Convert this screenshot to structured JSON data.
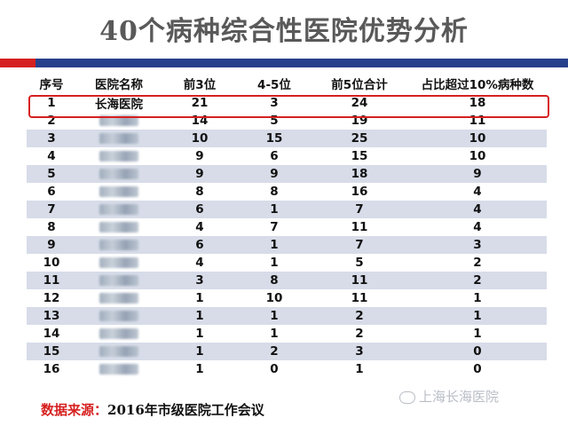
{
  "title": "40个病种综合性医院优势分析",
  "table": {
    "headers": [
      "序号",
      "医院名称",
      "前3位",
      "4-5位",
      "前5位合计",
      "占比超过10%病种数"
    ],
    "rows": [
      {
        "seq": "1",
        "name": "长海医院",
        "top3": "21",
        "pos45": "3",
        "top5": "24",
        "over10": "18"
      },
      {
        "seq": "2",
        "name": "",
        "top3": "14",
        "pos45": "5",
        "top5": "19",
        "over10": "11"
      },
      {
        "seq": "3",
        "name": "",
        "top3": "10",
        "pos45": "15",
        "top5": "25",
        "over10": "10"
      },
      {
        "seq": "4",
        "name": "",
        "top3": "9",
        "pos45": "6",
        "top5": "15",
        "over10": "10"
      },
      {
        "seq": "5",
        "name": "",
        "top3": "9",
        "pos45": "9",
        "top5": "18",
        "over10": "9"
      },
      {
        "seq": "6",
        "name": "",
        "top3": "8",
        "pos45": "8",
        "top5": "16",
        "over10": "4"
      },
      {
        "seq": "7",
        "name": "",
        "top3": "6",
        "pos45": "1",
        "top5": "7",
        "over10": "4"
      },
      {
        "seq": "8",
        "name": "",
        "top3": "4",
        "pos45": "7",
        "top5": "11",
        "over10": "4"
      },
      {
        "seq": "9",
        "name": "",
        "top3": "6",
        "pos45": "1",
        "top5": "7",
        "over10": "3"
      },
      {
        "seq": "10",
        "name": "",
        "top3": "4",
        "pos45": "1",
        "top5": "5",
        "over10": "2"
      },
      {
        "seq": "11",
        "name": "",
        "top3": "3",
        "pos45": "8",
        "top5": "11",
        "over10": "2"
      },
      {
        "seq": "12",
        "name": "",
        "top3": "1",
        "pos45": "10",
        "top5": "11",
        "over10": "1"
      },
      {
        "seq": "13",
        "name": "",
        "top3": "1",
        "pos45": "1",
        "top5": "2",
        "over10": "1"
      },
      {
        "seq": "14",
        "name": "",
        "top3": "1",
        "pos45": "1",
        "top5": "2",
        "over10": "1"
      },
      {
        "seq": "15",
        "name": "",
        "top3": "1",
        "pos45": "2",
        "top5": "3",
        "over10": "0"
      },
      {
        "seq": "16",
        "name": "",
        "top3": "1",
        "pos45": "0",
        "top5": "1",
        "over10": "0"
      }
    ]
  },
  "source": {
    "label": "数据来源：",
    "text": "2016年市级医院工作会议"
  },
  "watermark": "上海长海医院",
  "colors": {
    "accent_red": "#d62020",
    "accent_blue": "#27408b",
    "row_shade": "#d7dce8"
  }
}
